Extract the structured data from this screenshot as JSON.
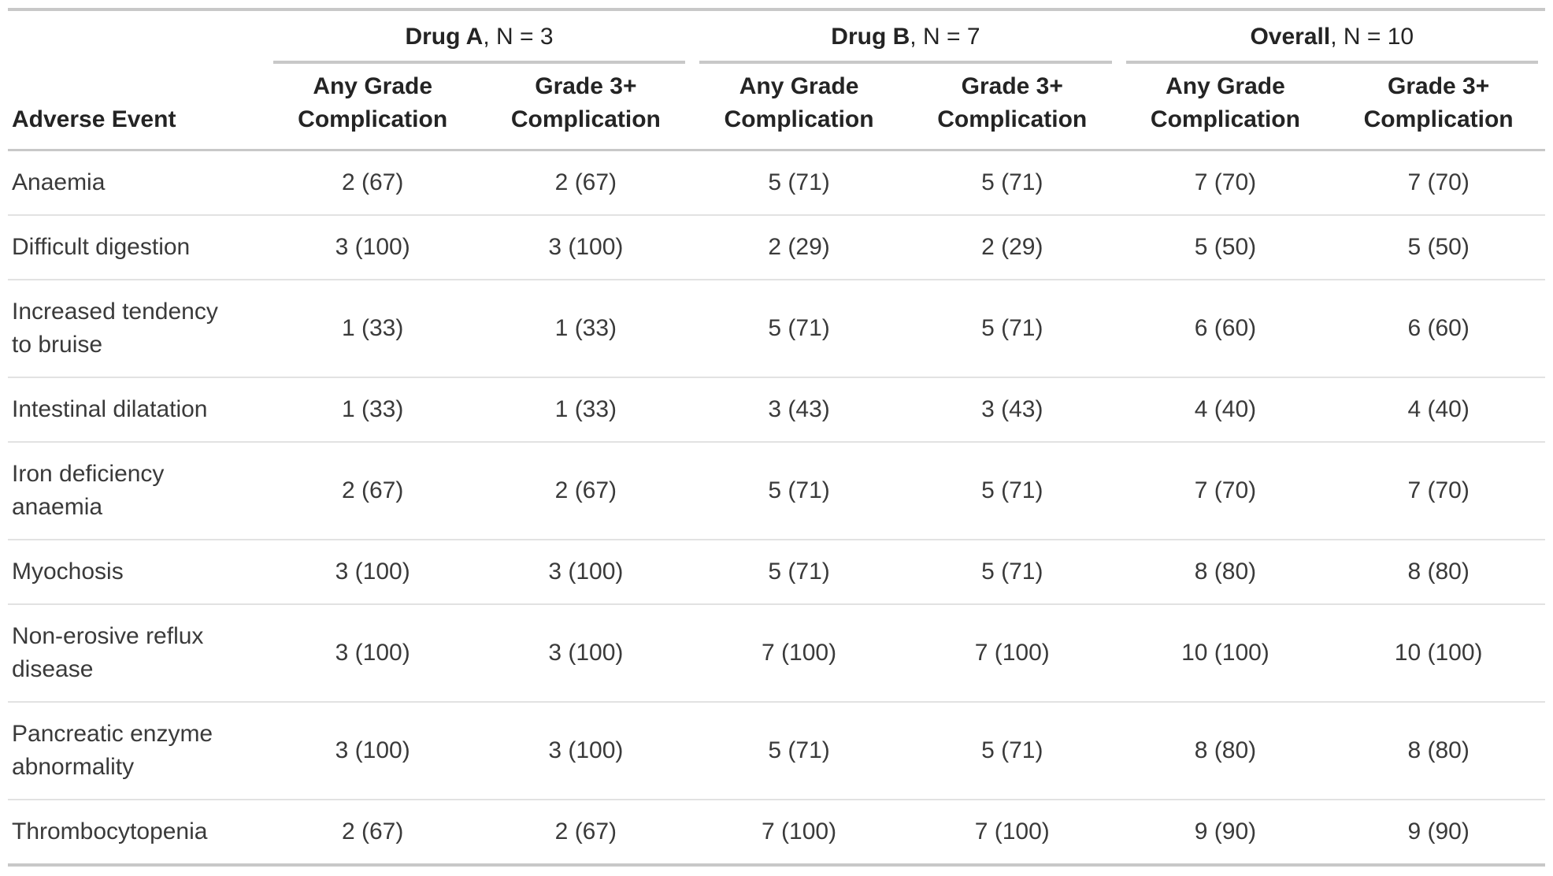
{
  "table": {
    "stub_header": "Adverse Event",
    "spanners": [
      {
        "name": "Drug A",
        "suffix": ", N = 3"
      },
      {
        "name": "Drug B",
        "suffix": ", N = 7"
      },
      {
        "name": "Overall",
        "suffix": ", N = 10"
      }
    ],
    "col_headers": [
      {
        "line1": "Any Grade",
        "line2": "Complication"
      },
      {
        "line1": "Grade 3+",
        "line2": "Complication"
      },
      {
        "line1": "Any Grade",
        "line2": "Complication"
      },
      {
        "line1": "Grade 3+",
        "line2": "Complication"
      },
      {
        "line1": "Any Grade",
        "line2": "Complication"
      },
      {
        "line1": "Grade 3+",
        "line2": "Complication"
      }
    ],
    "rows": [
      {
        "label": "Anaemia",
        "values": [
          "2 (67)",
          "2 (67)",
          "5 (71)",
          "5 (71)",
          "7 (70)",
          "7 (70)"
        ]
      },
      {
        "label": "Difficult digestion",
        "values": [
          "3 (100)",
          "3 (100)",
          "2 (29)",
          "2 (29)",
          "5 (50)",
          "5 (50)"
        ]
      },
      {
        "label": "Increased tendency\nto bruise",
        "values": [
          "1 (33)",
          "1 (33)",
          "5 (71)",
          "5 (71)",
          "6 (60)",
          "6 (60)"
        ]
      },
      {
        "label": "Intestinal dilatation",
        "values": [
          "1 (33)",
          "1 (33)",
          "3 (43)",
          "3 (43)",
          "4 (40)",
          "4 (40)"
        ]
      },
      {
        "label": "Iron deficiency\nanaemia",
        "values": [
          "2 (67)",
          "2 (67)",
          "5 (71)",
          "5 (71)",
          "7 (70)",
          "7 (70)"
        ]
      },
      {
        "label": "Myochosis",
        "values": [
          "3 (100)",
          "3 (100)",
          "5 (71)",
          "5 (71)",
          "8 (80)",
          "8 (80)"
        ]
      },
      {
        "label": "Non-erosive reflux\ndisease",
        "values": [
          "3 (100)",
          "3 (100)",
          "7 (100)",
          "7 (100)",
          "10 (100)",
          "10 (100)"
        ]
      },
      {
        "label": "Pancreatic enzyme\nabnormality",
        "values": [
          "3 (100)",
          "3 (100)",
          "5 (71)",
          "5 (71)",
          "8 (80)",
          "8 (80)"
        ]
      },
      {
        "label": "Thrombocytopenia",
        "values": [
          "2 (67)",
          "2 (67)",
          "7 (100)",
          "7 (100)",
          "9 (90)",
          "9 (90)"
        ]
      }
    ]
  },
  "theme": {
    "rule_color": "#c8c8c8",
    "divider_color": "#e2e2e2",
    "body_text_color": "#3a3a3a",
    "header_text_color": "#242424"
  },
  "chart_data": {
    "type": "table",
    "row_header": "Adverse Event",
    "column_groups": [
      {
        "label": "Drug A",
        "n": 3,
        "columns": [
          "Any Grade Complication",
          "Grade 3+ Complication"
        ]
      },
      {
        "label": "Drug B",
        "n": 7,
        "columns": [
          "Any Grade Complication",
          "Grade 3+ Complication"
        ]
      },
      {
        "label": "Overall",
        "n": 10,
        "columns": [
          "Any Grade Complication",
          "Grade 3+ Complication"
        ]
      }
    ],
    "rows": [
      [
        "Anaemia",
        "2 (67)",
        "2 (67)",
        "5 (71)",
        "5 (71)",
        "7 (70)",
        "7 (70)"
      ],
      [
        "Difficult digestion",
        "3 (100)",
        "3 (100)",
        "2 (29)",
        "2 (29)",
        "5 (50)",
        "5 (50)"
      ],
      [
        "Increased tendency to bruise",
        "1 (33)",
        "1 (33)",
        "5 (71)",
        "5 (71)",
        "6 (60)",
        "6 (60)"
      ],
      [
        "Intestinal dilatation",
        "1 (33)",
        "1 (33)",
        "3 (43)",
        "3 (43)",
        "4 (40)",
        "4 (40)"
      ],
      [
        "Iron deficiency anaemia",
        "2 (67)",
        "2 (67)",
        "5 (71)",
        "5 (71)",
        "7 (70)",
        "7 (70)"
      ],
      [
        "Myochosis",
        "3 (100)",
        "3 (100)",
        "5 (71)",
        "5 (71)",
        "8 (80)",
        "8 (80)"
      ],
      [
        "Non-erosive reflux disease",
        "3 (100)",
        "3 (100)",
        "7 (100)",
        "7 (100)",
        "10 (100)",
        "10 (100)"
      ],
      [
        "Pancreatic enzyme abnormality",
        "3 (100)",
        "3 (100)",
        "5 (71)",
        "5 (71)",
        "8 (80)",
        "8 (80)"
      ],
      [
        "Thrombocytopenia",
        "2 (67)",
        "2 (67)",
        "7 (100)",
        "7 (100)",
        "9 (90)",
        "9 (90)"
      ]
    ]
  }
}
